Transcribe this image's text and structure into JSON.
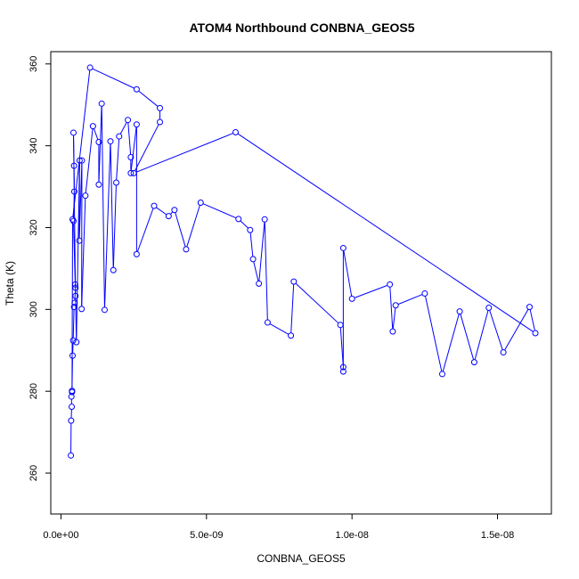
{
  "chart_data": {
    "type": "line",
    "title": "ATOM4 Northbound CONBNA_GEOS5",
    "xlabel": "CONBNA_GEOS5",
    "ylabel": "Theta (K)",
    "xlim": [
      -3.5e-10,
      1.685e-08
    ],
    "ylim": [
      250,
      363
    ],
    "x_ticks": [
      {
        "value": 0,
        "label": "0.0e+00"
      },
      {
        "value": 5e-09,
        "label": "5.0e-09"
      },
      {
        "value": 1e-08,
        "label": "1.0e-08"
      },
      {
        "value": 1.5e-08,
        "label": "1.5e-08"
      }
    ],
    "y_ticks": [
      {
        "value": 260,
        "label": "260"
      },
      {
        "value": 280,
        "label": "280"
      },
      {
        "value": 300,
        "label": "300"
      },
      {
        "value": 320,
        "label": "320"
      },
      {
        "value": 340,
        "label": "340"
      },
      {
        "value": 360,
        "label": "360"
      }
    ],
    "grid": false,
    "legend": "none",
    "color": "#0000ff",
    "series": [
      {
        "points": [
          [
            3.4e-10,
            264.3
          ],
          [
            3.5e-10,
            272.8
          ],
          [
            3.7e-10,
            276.2
          ],
          [
            3.6e-10,
            278.7
          ],
          [
            3.8e-10,
            280.1
          ],
          [
            4e-10,
            288.7
          ],
          [
            4.2e-10,
            292.4
          ],
          [
            4.5e-10,
            300.6
          ],
          [
            4.7e-10,
            301.6
          ],
          [
            5e-10,
            305.3
          ],
          [
            4.9e-10,
            306.1
          ],
          [
            4.3e-10,
            321.6
          ],
          [
            4.6e-10,
            328.8
          ],
          [
            4.5e-10,
            335.1
          ],
          [
            4.3e-10,
            343.2
          ],
          [
            5e-10,
            303.3
          ],
          [
            5.3e-10,
            292.0
          ],
          [
            6.4e-10,
            336.4
          ],
          [
            6.3e-10,
            316.8
          ],
          [
            7.2e-10,
            336.4
          ],
          [
            7.1e-10,
            300.1
          ],
          [
            8.4e-10,
            327.8
          ],
          [
            1.1e-09,
            344.8
          ],
          [
            1.3e-09,
            340.9
          ],
          [
            1.3e-09,
            330.5
          ],
          [
            1.4e-09,
            350.3
          ],
          [
            1.5e-09,
            299.9
          ],
          [
            1.7e-09,
            341.1
          ],
          [
            1.8e-09,
            309.6
          ],
          [
            1.9e-09,
            331.0
          ],
          [
            2e-09,
            342.3
          ],
          [
            2.3e-09,
            346.3
          ],
          [
            2.4e-09,
            337.2
          ],
          [
            2.4e-09,
            333.3
          ],
          [
            2.6e-09,
            345.2
          ],
          [
            2.6e-09,
            313.5
          ],
          [
            3.2e-09,
            325.3
          ],
          [
            3.7e-09,
            322.8
          ],
          [
            3.9e-09,
            324.3
          ],
          [
            4.3e-09,
            314.7
          ],
          [
            4.8e-09,
            326.1
          ],
          [
            6.1e-09,
            322.1
          ],
          [
            6.5e-09,
            319.4
          ],
          [
            6.6e-09,
            312.3
          ],
          [
            6.8e-09,
            306.3
          ],
          [
            7e-09,
            322.0
          ],
          [
            7.1e-09,
            296.8
          ],
          [
            7.9e-09,
            293.6
          ],
          [
            8e-09,
            306.8
          ],
          [
            9.6e-09,
            296.2
          ],
          [
            9.7e-09,
            285.9
          ],
          [
            9.7e-09,
            284.8
          ],
          [
            9.7e-09,
            315.0
          ],
          [
            1e-08,
            302.6
          ],
          [
            1.13e-08,
            306.1
          ],
          [
            1.14e-08,
            294.6
          ],
          [
            1.15e-08,
            301.0
          ],
          [
            1.25e-08,
            303.9
          ],
          [
            1.31e-08,
            284.2
          ],
          [
            1.37e-08,
            299.5
          ],
          [
            1.42e-08,
            287.1
          ],
          [
            1.47e-08,
            300.4
          ],
          [
            1.52e-08,
            289.5
          ],
          [
            1.61e-08,
            300.6
          ],
          [
            1.63e-08,
            294.2
          ],
          [
            6e-09,
            343.3
          ],
          [
            2.5e-09,
            333.3
          ],
          [
            3.4e-09,
            345.8
          ],
          [
            3.4e-09,
            349.2
          ],
          [
            2.6e-09,
            353.8
          ],
          [
            1e-09,
            359.1
          ],
          [
            4e-10,
            322.0
          ],
          [
            3.8e-10,
            279.8
          ]
        ]
      }
    ]
  }
}
